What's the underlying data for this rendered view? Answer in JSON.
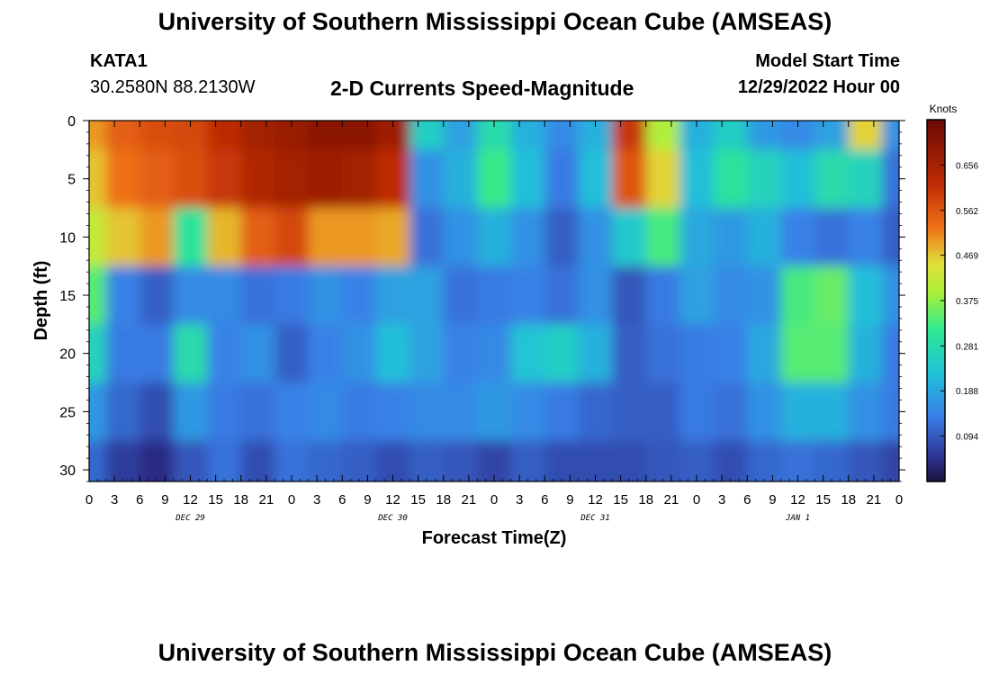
{
  "header": {
    "title": "University of Southern Mississippi Ocean Cube (AMSEAS)",
    "station_id": "KATA1",
    "station_coords": "30.2580N  88.2130W",
    "plot_title": "2-D Currents Speed-Magnitude",
    "model_start_label": "Model Start Time",
    "model_start_value": "12/29/2022 Hour 00"
  },
  "footer": {
    "title": "University of Southern Mississippi Ocean Cube (AMSEAS)"
  },
  "chart_data": {
    "type": "heatmap",
    "xlabel": "Forecast Time(Z)",
    "ylabel": "Depth (ft)",
    "xlim": [
      0,
      96
    ],
    "ylim": [
      0,
      31
    ],
    "x_ticks": [
      "0",
      "3",
      "6",
      "9",
      "12",
      "15",
      "18",
      "21",
      "0",
      "3",
      "6",
      "9",
      "12",
      "15",
      "18",
      "21",
      "0",
      "3",
      "6",
      "9",
      "12",
      "15",
      "18",
      "21",
      "0",
      "3",
      "6",
      "9",
      "12",
      "15",
      "18",
      "21",
      "0"
    ],
    "y_ticks": [
      0,
      5,
      10,
      15,
      20,
      25,
      30
    ],
    "day_labels": [
      "DEC 29",
      "DEC 30",
      "DEC 31",
      "JAN 1"
    ],
    "colorbar": {
      "title": "Knots",
      "ticks": [
        "0.656",
        "0.562",
        "0.469",
        "0.375",
        "0.281",
        "0.188",
        "0.094"
      ],
      "tick_values": [
        0.656,
        0.562,
        0.469,
        0.375,
        0.281,
        0.188,
        0.094
      ],
      "range": [
        0,
        0.75
      ]
    },
    "depth_levels_ft": [
      0,
      5,
      10,
      15,
      20,
      25,
      30
    ],
    "speed_knots_by_depth": [
      [
        0.5,
        0.55,
        0.57,
        0.58,
        0.62,
        0.66,
        0.68,
        0.7,
        0.7,
        0.67,
        0.25,
        0.18,
        0.28,
        0.2,
        0.15,
        0.2,
        0.6,
        0.4,
        0.2,
        0.25,
        0.17,
        0.15,
        0.18,
        0.46,
        0.16
      ],
      [
        0.47,
        0.53,
        0.55,
        0.57,
        0.6,
        0.64,
        0.66,
        0.67,
        0.66,
        0.62,
        0.16,
        0.2,
        0.32,
        0.22,
        0.13,
        0.22,
        0.56,
        0.46,
        0.22,
        0.3,
        0.26,
        0.22,
        0.28,
        0.26,
        0.12
      ],
      [
        0.42,
        0.47,
        0.5,
        0.3,
        0.48,
        0.55,
        0.58,
        0.5,
        0.5,
        0.49,
        0.12,
        0.16,
        0.2,
        0.16,
        0.1,
        0.16,
        0.24,
        0.33,
        0.19,
        0.17,
        0.2,
        0.14,
        0.12,
        0.14,
        0.1
      ],
      [
        0.34,
        0.14,
        0.1,
        0.15,
        0.15,
        0.12,
        0.13,
        0.16,
        0.14,
        0.18,
        0.18,
        0.12,
        0.13,
        0.14,
        0.12,
        0.16,
        0.09,
        0.13,
        0.18,
        0.15,
        0.16,
        0.33,
        0.35,
        0.22,
        0.16
      ],
      [
        0.26,
        0.13,
        0.13,
        0.28,
        0.14,
        0.16,
        0.1,
        0.14,
        0.16,
        0.22,
        0.18,
        0.14,
        0.15,
        0.23,
        0.25,
        0.2,
        0.1,
        0.12,
        0.13,
        0.14,
        0.19,
        0.34,
        0.34,
        0.2,
        0.13
      ],
      [
        0.17,
        0.11,
        0.08,
        0.17,
        0.13,
        0.12,
        0.14,
        0.15,
        0.13,
        0.14,
        0.15,
        0.15,
        0.17,
        0.15,
        0.13,
        0.11,
        0.1,
        0.1,
        0.13,
        0.12,
        0.16,
        0.2,
        0.2,
        0.16,
        0.13
      ],
      [
        0.11,
        0.06,
        0.04,
        0.09,
        0.12,
        0.08,
        0.12,
        0.11,
        0.1,
        0.08,
        0.1,
        0.09,
        0.07,
        0.1,
        0.08,
        0.08,
        0.08,
        0.09,
        0.1,
        0.08,
        0.11,
        0.12,
        0.11,
        0.09,
        0.07
      ]
    ]
  },
  "colors": {
    "dark_red": "#7a0c06",
    "red": "#c02c05",
    "orange": "#f07318",
    "yellow": "#e0e23a",
    "green": "#2fe98f",
    "cyan": "#1fc3d8",
    "blue": "#3a7ee8",
    "dark_blue": "#25226a"
  }
}
